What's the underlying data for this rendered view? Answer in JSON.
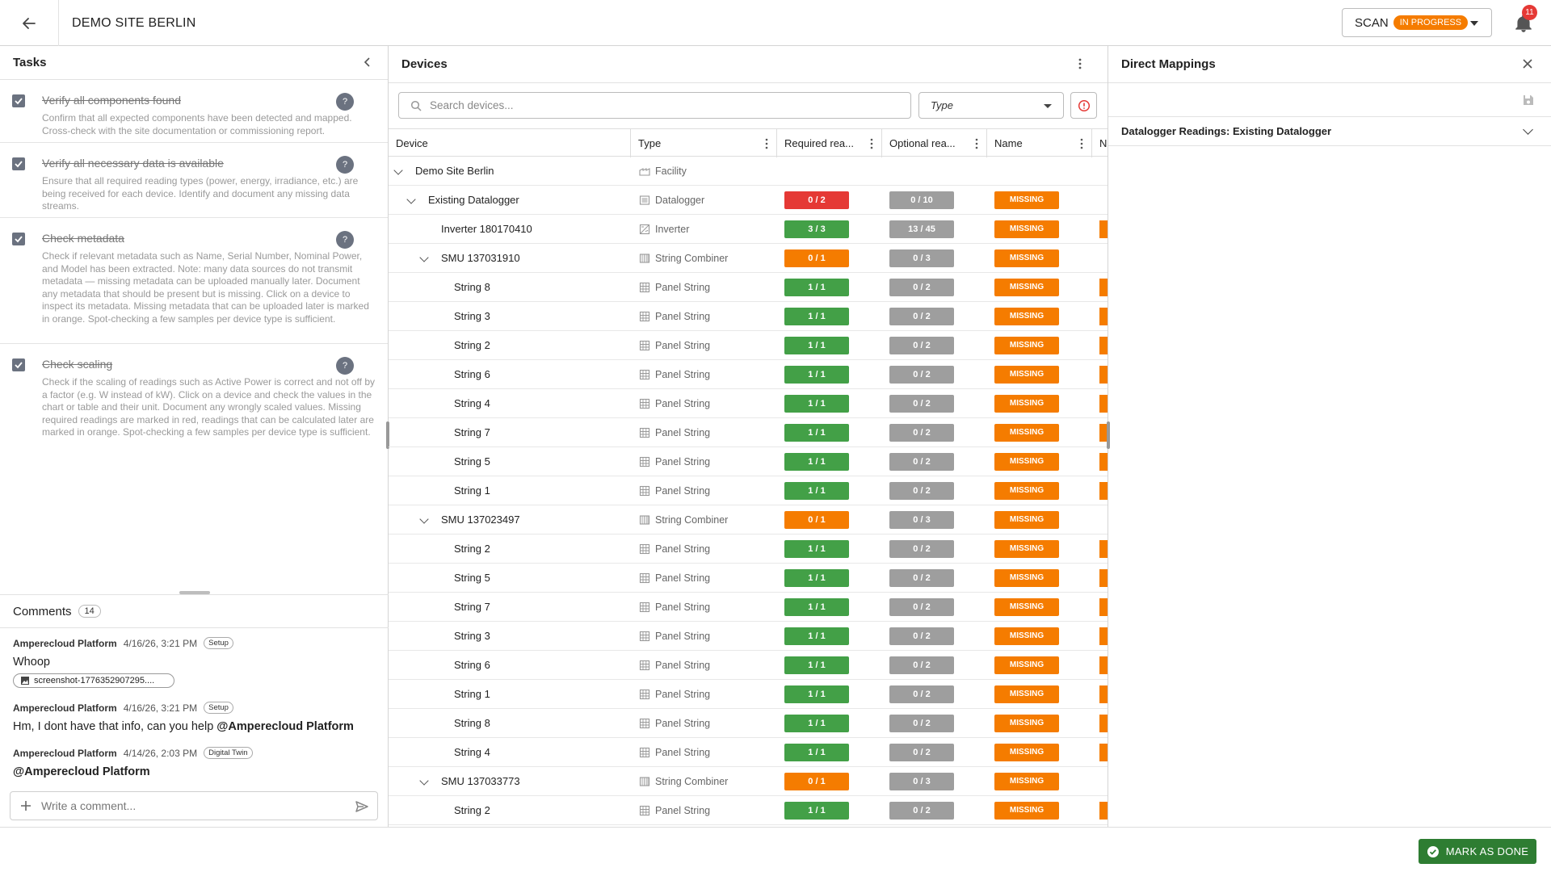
{
  "header": {
    "site_title": "DEMO SITE BERLIN",
    "scan_label": "SCAN",
    "scan_status": "IN PROGRESS",
    "notification_count": "11"
  },
  "tasks": {
    "title": "Tasks",
    "items": [
      {
        "title": "Verify all components found",
        "description": "Confirm that all expected components have been detected and mapped. Cross-check with the site documentation or commissioning report."
      },
      {
        "title": "Verify all necessary data is available",
        "description": "Ensure that all required reading types (power, energy, irradiance, etc.) are being received for each device. Identify and document any missing data streams."
      },
      {
        "title": "Check metadata",
        "description": "Check if relevant metadata such as Name, Serial Number, Nominal Power, and Model has been extracted. Note: many data sources do not transmit metadata — missing metadata can be uploaded manually later. Document any metadata that should be present but is missing. Click on a device to inspect its metadata. Missing metadata that can be uploaded later is marked in orange. Spot-checking a few samples per device type is sufficient."
      },
      {
        "title": "Check scaling",
        "description": "Check if the scaling of readings such as Active Power is correct and not off by a factor (e.g. W instead of kW). Click on a device and check the values in the chart or table and their unit. Document any wrongly scaled values. Missing required readings are marked in red, readings that can be calculated later are marked in orange. Spot-checking a few samples per device type is sufficient."
      }
    ],
    "help_glyph": "?"
  },
  "comments": {
    "title": "Comments",
    "count": "14",
    "items": [
      {
        "author": "Amperecloud Platform",
        "date": "4/16/26, 3:21 PM",
        "tag": "Setup",
        "body": "Whoop",
        "attachment": "screenshot-1776352907295...."
      },
      {
        "author": "Amperecloud Platform",
        "date": "4/16/26, 3:21 PM",
        "tag": "Setup",
        "body": "Hm, I dont have that info, can you help",
        "mention": "@Amperecloud Platform"
      },
      {
        "author": "Amperecloud Platform",
        "date": "4/14/26, 2:03 PM",
        "tag": "Digital Twin",
        "mention": "@Amperecloud Platform"
      }
    ],
    "input_placeholder": "Write a comment..."
  },
  "devices": {
    "title": "Devices",
    "search_placeholder": "Search devices...",
    "type_filter": "Type",
    "columns": [
      "Device",
      "Type",
      "Required rea...",
      "Optional rea...",
      "Name",
      "N"
    ],
    "rows": [
      {
        "name": "Demo Site Berlin",
        "level": 0,
        "expand": true,
        "type": "Facility",
        "icon": "facility-icon"
      },
      {
        "name": "Existing Datalogger",
        "level": 1,
        "expand": true,
        "type": "Datalogger",
        "icon": "datalogger-icon",
        "required": "0 / 2",
        "req_color": "red",
        "optional": "0 / 10",
        "status": "MISSING"
      },
      {
        "name": "Inverter 180170410",
        "level": 2,
        "expand": false,
        "type": "Inverter",
        "icon": "inverter-icon",
        "required": "3 / 3",
        "req_color": "green",
        "optional": "13 / 45",
        "status": "MISSING",
        "edge": true
      },
      {
        "name": "SMU 137031910",
        "level": 2,
        "expand": true,
        "type": "String Combiner",
        "icon": "string-combiner-icon",
        "required": "0 / 1",
        "req_color": "orange",
        "optional": "0 / 3",
        "status": "MISSING"
      },
      {
        "name": "String 8",
        "level": 3,
        "expand": false,
        "type": "Panel String",
        "icon": "panel-string-icon",
        "required": "1 / 1",
        "req_color": "green",
        "optional": "0 / 2",
        "status": "MISSING",
        "edge": true
      },
      {
        "name": "String 3",
        "level": 3,
        "expand": false,
        "type": "Panel String",
        "icon": "panel-string-icon",
        "required": "1 / 1",
        "req_color": "green",
        "optional": "0 / 2",
        "status": "MISSING",
        "edge": true
      },
      {
        "name": "String 2",
        "level": 3,
        "expand": false,
        "type": "Panel String",
        "icon": "panel-string-icon",
        "required": "1 / 1",
        "req_color": "green",
        "optional": "0 / 2",
        "status": "MISSING",
        "edge": true
      },
      {
        "name": "String 6",
        "level": 3,
        "expand": false,
        "type": "Panel String",
        "icon": "panel-string-icon",
        "required": "1 / 1",
        "req_color": "green",
        "optional": "0 / 2",
        "status": "MISSING",
        "edge": true
      },
      {
        "name": "String 4",
        "level": 3,
        "expand": false,
        "type": "Panel String",
        "icon": "panel-string-icon",
        "required": "1 / 1",
        "req_color": "green",
        "optional": "0 / 2",
        "status": "MISSING",
        "edge": true
      },
      {
        "name": "String 7",
        "level": 3,
        "expand": false,
        "type": "Panel String",
        "icon": "panel-string-icon",
        "required": "1 / 1",
        "req_color": "green",
        "optional": "0 / 2",
        "status": "MISSING",
        "edge": true
      },
      {
        "name": "String 5",
        "level": 3,
        "expand": false,
        "type": "Panel String",
        "icon": "panel-string-icon",
        "required": "1 / 1",
        "req_color": "green",
        "optional": "0 / 2",
        "status": "MISSING",
        "edge": true
      },
      {
        "name": "String 1",
        "level": 3,
        "expand": false,
        "type": "Panel String",
        "icon": "panel-string-icon",
        "required": "1 / 1",
        "req_color": "green",
        "optional": "0 / 2",
        "status": "MISSING",
        "edge": true
      },
      {
        "name": "SMU 137023497",
        "level": 2,
        "expand": true,
        "type": "String Combiner",
        "icon": "string-combiner-icon",
        "required": "0 / 1",
        "req_color": "orange",
        "optional": "0 / 3",
        "status": "MISSING"
      },
      {
        "name": "String 2",
        "level": 3,
        "expand": false,
        "type": "Panel String",
        "icon": "panel-string-icon",
        "required": "1 / 1",
        "req_color": "green",
        "optional": "0 / 2",
        "status": "MISSING",
        "edge": true
      },
      {
        "name": "String 5",
        "level": 3,
        "expand": false,
        "type": "Panel String",
        "icon": "panel-string-icon",
        "required": "1 / 1",
        "req_color": "green",
        "optional": "0 / 2",
        "status": "MISSING",
        "edge": true
      },
      {
        "name": "String 7",
        "level": 3,
        "expand": false,
        "type": "Panel String",
        "icon": "panel-string-icon",
        "required": "1 / 1",
        "req_color": "green",
        "optional": "0 / 2",
        "status": "MISSING",
        "edge": true
      },
      {
        "name": "String 3",
        "level": 3,
        "expand": false,
        "type": "Panel String",
        "icon": "panel-string-icon",
        "required": "1 / 1",
        "req_color": "green",
        "optional": "0 / 2",
        "status": "MISSING",
        "edge": true
      },
      {
        "name": "String 6",
        "level": 3,
        "expand": false,
        "type": "Panel String",
        "icon": "panel-string-icon",
        "required": "1 / 1",
        "req_color": "green",
        "optional": "0 / 2",
        "status": "MISSING",
        "edge": true
      },
      {
        "name": "String 1",
        "level": 3,
        "expand": false,
        "type": "Panel String",
        "icon": "panel-string-icon",
        "required": "1 / 1",
        "req_color": "green",
        "optional": "0 / 2",
        "status": "MISSING",
        "edge": true
      },
      {
        "name": "String 8",
        "level": 3,
        "expand": false,
        "type": "Panel String",
        "icon": "panel-string-icon",
        "required": "1 / 1",
        "req_color": "green",
        "optional": "0 / 2",
        "status": "MISSING",
        "edge": true
      },
      {
        "name": "String 4",
        "level": 3,
        "expand": false,
        "type": "Panel String",
        "icon": "panel-string-icon",
        "required": "1 / 1",
        "req_color": "green",
        "optional": "0 / 2",
        "status": "MISSING",
        "edge": true
      },
      {
        "name": "SMU 137033773",
        "level": 2,
        "expand": true,
        "type": "String Combiner",
        "icon": "string-combiner-icon",
        "required": "0 / 1",
        "req_color": "orange",
        "optional": "0 / 3",
        "status": "MISSING"
      },
      {
        "name": "String 2",
        "level": 3,
        "expand": false,
        "type": "Panel String",
        "icon": "panel-string-icon",
        "required": "1 / 1",
        "req_color": "green",
        "optional": "0 / 2",
        "status": "MISSING",
        "edge": true
      }
    ]
  },
  "mappings": {
    "title": "Direct Mappings",
    "accordion_label": "Datalogger Readings: Existing Datalogger"
  },
  "footer": {
    "mark_done_label": "MARK AS DONE"
  },
  "colors": {
    "accent_orange": "#f57c00",
    "success_green": "#43a047",
    "error_red": "#e53935",
    "neutral_gray": "#9e9e9e",
    "done_green": "#2e7d32"
  }
}
